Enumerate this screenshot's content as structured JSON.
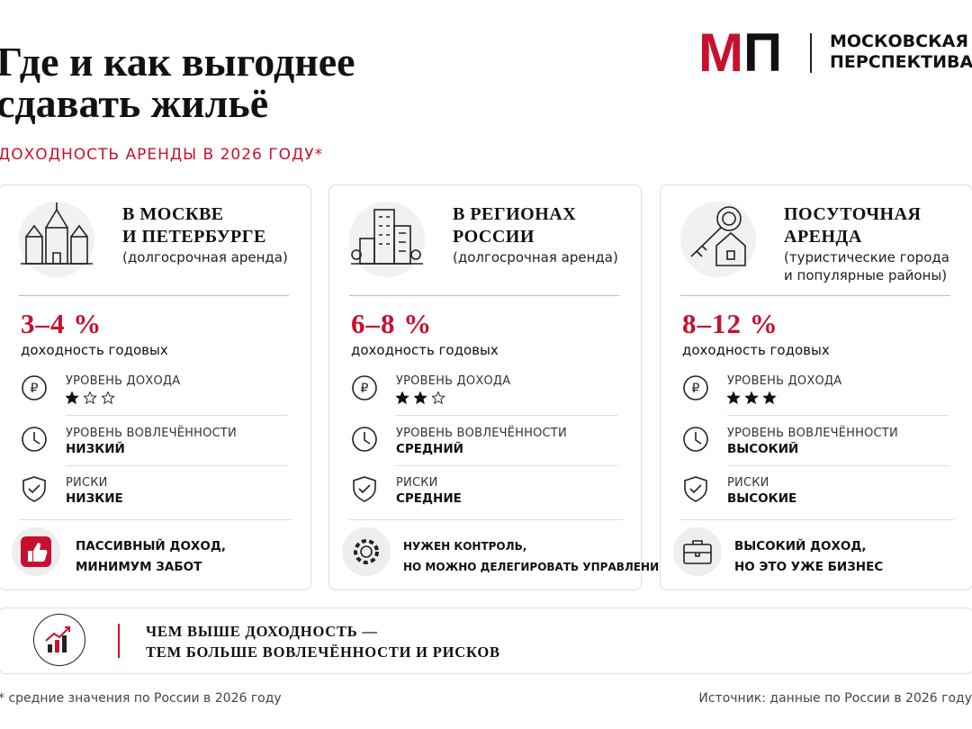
{
  "header": {
    "title_lines": [
      "Где и как выгоднее",
      "сдавать жильё"
    ],
    "subtitle": "ДОХОДНОСТЬ АРЕНДЫ В 2026 ГОДУ*"
  },
  "logo": {
    "mark": [
      "М",
      "П"
    ],
    "name_lines": [
      "МОСКОВСКАЯ",
      "ПЕРСПЕКТИВА"
    ]
  },
  "rating_scale": 3,
  "cards": [
    {
      "title_lines": [
        "В МОСКВЕ",
        "И ПЕТЕРБУРГЕ"
      ],
      "note_lines": [
        "(долгосрочная аренда)"
      ],
      "yield": "3–4 %",
      "yield_label": "доходность годовых",
      "income_label": "УРОВЕНЬ ДОХОДА",
      "rating": 1,
      "involvement_label": "УРОВЕНЬ ВОВЛЕЧЁННОСТИ",
      "involvement": "НИЗКИЙ",
      "risk_label": "РИСКИ",
      "risk": "НИЗКИЕ",
      "summary_lines": [
        "ПАССИВНЫЙ ДОХОД,",
        "МИНИМУМ ЗАБОТ"
      ]
    },
    {
      "title_lines": [
        "В РЕГИОНАХ",
        "РОССИИ"
      ],
      "note_lines": [
        "(долгосрочная аренда)"
      ],
      "yield": "6–8 %",
      "yield_label": "доходность годовых",
      "income_label": "УРОВЕНЬ ДОХОДА",
      "rating": 2,
      "involvement_label": "УРОВЕНЬ ВОВЛЕЧЁННОСТИ",
      "involvement": "СРЕДНИЙ",
      "risk_label": "РИСКИ",
      "risk": "СРЕДНИЕ",
      "summary_lines": [
        "НУЖЕН КОНТРОЛЬ,",
        "НО МОЖНО ДЕЛЕГИРОВАТЬ УПРАВЛЕНИЕ"
      ]
    },
    {
      "title_lines": [
        "ПОСУТОЧНАЯ",
        "АРЕНДА"
      ],
      "note_lines": [
        "(туристические города",
        "и популярные районы)"
      ],
      "yield": "8–12 %",
      "yield_label": "доходность годовых",
      "income_label": "УРОВЕНЬ ДОХОДА",
      "rating": 3,
      "involvement_label": "УРОВЕНЬ ВОВЛЕЧЁННОСТИ",
      "involvement": "ВЫСОКИЙ",
      "risk_label": "РИСКИ",
      "risk": "ВЫСОКИЕ",
      "summary_lines": [
        "ВЫСОКИЙ ДОХОД,",
        "НО ЭТО УЖЕ БИЗНЕС"
      ]
    }
  ],
  "banner": {
    "lines": [
      "ЧЕМ ВЫШЕ ДОХОДНОСТЬ —",
      "ТЕМ БОЛЬШЕ ВОВЛЕЧЁННОСТИ И РИСКОВ"
    ]
  },
  "footer": {
    "note": "* средние значения по России в 2026 году",
    "source": "Источник: данные по России в 2026 году"
  }
}
